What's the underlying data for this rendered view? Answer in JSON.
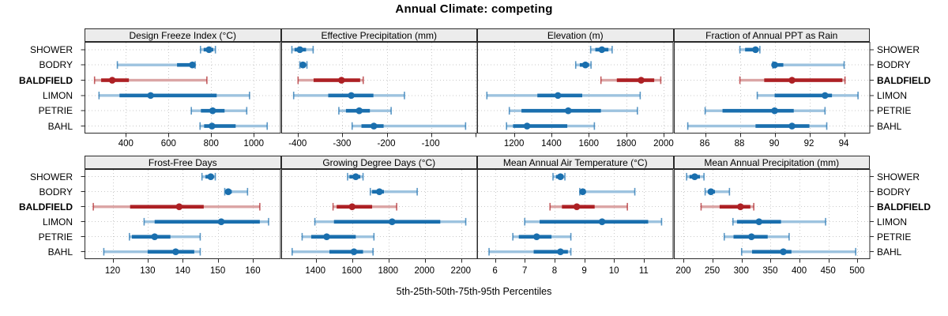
{
  "title": "Annual Climate: competing",
  "xlabel": "5th-25th-50th-75th-95th Percentiles",
  "sites": [
    "SHOWER",
    "BODRY",
    "BALDFIELD",
    "LIMON",
    "PETRIE",
    "BAHL"
  ],
  "highlight_site": "BALDFIELD",
  "percentile_levels": [
    "5th",
    "25th",
    "50th",
    "75th",
    "95th"
  ],
  "colors": {
    "series": "#1A6FAE",
    "series_light": "#9DC3DF",
    "highlight": "#AD2024",
    "highlight_light": "#DBA5A5",
    "strip_bg": "#ECECEC",
    "grid": "#C9C9C9",
    "border": "#2A2A2A"
  },
  "chart_data": {
    "type": "errorbar",
    "layout": "2x4 trellis dotplot, one panel per climate variable",
    "grid": "dotted",
    "legend_position": "none",
    "panels": [
      {
        "title": "Design Freeze Index (°C)",
        "row": 0,
        "col": 0,
        "xlim": [
          206,
          1127
        ],
        "xticks": [
          400,
          600,
          800,
          1000
        ],
        "extra_gridlines": [],
        "series": [
          {
            "site": "SHOWER",
            "percentiles": [
              750,
              765,
              790,
              810,
              820
            ]
          },
          {
            "site": "BODRY",
            "percentiles": [
              360,
              640,
              712,
              718,
              725
            ]
          },
          {
            "site": "BALDFIELD",
            "percentiles": [
              253,
              284,
              336,
              414,
              780
            ]
          },
          {
            "site": "LIMON",
            "percentiles": [
              274,
              370,
              516,
              826,
              980
            ]
          },
          {
            "site": "PETRIE",
            "percentiles": [
              707,
              752,
              807,
              863,
              967
            ]
          },
          {
            "site": "BAHL",
            "percentiles": [
              748,
              767,
              804,
              915,
              1063
            ]
          }
        ]
      },
      {
        "title": "Effective Precipitation (mm)",
        "row": 0,
        "col": 1,
        "xlim": [
          -438,
          5
        ],
        "xticks": [
          -400,
          -300,
          -200,
          -100
        ],
        "extra_gridlines": [
          0
        ],
        "series": [
          {
            "site": "SHOWER",
            "percentiles": [
              -414,
              -408,
              -396,
              -382,
              -366
            ]
          },
          {
            "site": "BODRY",
            "percentiles": [
              -396,
              -393,
              -389,
              -384,
              -380
            ]
          },
          {
            "site": "BALDFIELD",
            "percentiles": [
              -400,
              -365,
              -302,
              -260,
              -253
            ]
          },
          {
            "site": "LIMON",
            "percentiles": [
              -410,
              -332,
              -280,
              -230,
              -160
            ]
          },
          {
            "site": "PETRIE",
            "percentiles": [
              -308,
              -292,
              -262,
              -238,
              -190
            ]
          },
          {
            "site": "BAHL",
            "percentiles": [
              -278,
              -257,
              -229,
              -207,
              -22
            ]
          }
        ]
      },
      {
        "title": "Elevation (m)",
        "row": 0,
        "col": 2,
        "xlim": [
          1003,
          2053
        ],
        "xticks": [
          1200,
          1400,
          1600,
          1800,
          2000
        ],
        "extra_gridlines": [],
        "series": [
          {
            "site": "SHOWER",
            "percentiles": [
              1610,
              1635,
              1670,
              1705,
              1725
            ]
          },
          {
            "site": "BODRY",
            "percentiles": [
              1530,
              1552,
              1582,
              1602,
              1612
            ]
          },
          {
            "site": "BALDFIELD",
            "percentiles": [
              1665,
              1750,
              1880,
              1950,
              1985
            ]
          },
          {
            "site": "LIMON",
            "percentiles": [
              1055,
              1325,
              1435,
              1565,
              1875
            ]
          },
          {
            "site": "PETRIE",
            "percentiles": [
              1175,
              1240,
              1490,
              1665,
              1860
            ]
          },
          {
            "site": "BAHL",
            "percentiles": [
              1160,
              1195,
              1270,
              1485,
              1630
            ]
          }
        ]
      },
      {
        "title": "Fraction of Annual PPT as Rain",
        "row": 0,
        "col": 3,
        "xlim": [
          84.2,
          95.5
        ],
        "xticks": [
          86,
          88,
          90,
          92,
          94
        ],
        "extra_gridlines": [],
        "series": [
          {
            "site": "SHOWER",
            "percentiles": [
              88.0,
              88.3,
              88.9,
              89.05,
              89.15
            ]
          },
          {
            "site": "BODRY",
            "percentiles": [
              89.9,
              89.95,
              90.0,
              90.5,
              94.0
            ]
          },
          {
            "site": "BALDFIELD",
            "percentiles": [
              88.0,
              89.4,
              91.0,
              93.9,
              94.05
            ]
          },
          {
            "site": "LIMON",
            "percentiles": [
              89.0,
              90.0,
              92.9,
              93.3,
              94.8
            ]
          },
          {
            "site": "PETRIE",
            "percentiles": [
              86.0,
              87.0,
              90.0,
              91.1,
              92.9
            ]
          },
          {
            "site": "BAHL",
            "percentiles": [
              85.0,
              88.9,
              91.0,
              92.0,
              93.0
            ]
          }
        ]
      },
      {
        "title": "Frost-Free Days",
        "row": 1,
        "col": 0,
        "xlim": [
          112,
          168
        ],
        "xticks": [
          120,
          130,
          140,
          150,
          160
        ],
        "extra_gridlines": [],
        "series": [
          {
            "site": "SHOWER",
            "percentiles": [
              145.5,
              146.5,
              148,
              148.8,
              149.3
            ]
          },
          {
            "site": "BODRY",
            "percentiles": [
              152,
              152.5,
              153,
              154,
              158.5
            ]
          },
          {
            "site": "BALDFIELD",
            "percentiles": [
              114.5,
              125,
              139,
              146,
              162
            ]
          },
          {
            "site": "LIMON",
            "percentiles": [
              129,
              132,
              151,
              162,
              164.5
            ]
          },
          {
            "site": "PETRIE",
            "percentiles": [
              124.8,
              125.5,
              132,
              136.5,
              145
            ]
          },
          {
            "site": "BAHL",
            "percentiles": [
              117.5,
              130,
              138,
              143.3,
              145
            ]
          }
        ]
      },
      {
        "title": "Growing Degree Days (°C)",
        "row": 1,
        "col": 1,
        "xlim": [
          1210,
          2290
        ],
        "xticks": [
          1400,
          1600,
          1800,
          2000,
          2200
        ],
        "extra_gridlines": [],
        "series": [
          {
            "site": "SHOWER",
            "percentiles": [
              1575,
              1585,
              1620,
              1645,
              1660
            ]
          },
          {
            "site": "BODRY",
            "percentiles": [
              1700,
              1710,
              1750,
              1775,
              1958
            ]
          },
          {
            "site": "BALDFIELD",
            "percentiles": [
              1495,
              1515,
              1600,
              1710,
              1845
            ]
          },
          {
            "site": "LIMON",
            "percentiles": [
              1395,
              1500,
              1820,
              2085,
              2225
            ]
          },
          {
            "site": "PETRIE",
            "percentiles": [
              1325,
              1375,
              1460,
              1620,
              1720
            ]
          },
          {
            "site": "BAHL",
            "percentiles": [
              1270,
              1475,
              1610,
              1660,
              1715
            ]
          }
        ]
      },
      {
        "title": "Mean Annual Air Temperature (°C)",
        "row": 1,
        "col": 2,
        "xlim": [
          5.4,
          12.0
        ],
        "xticks": [
          6,
          7,
          8,
          9,
          10,
          11
        ],
        "extra_gridlines": [],
        "series": [
          {
            "site": "SHOWER",
            "percentiles": [
              7.95,
              8.05,
              8.2,
              8.3,
              8.35
            ]
          },
          {
            "site": "BODRY",
            "percentiles": [
              8.85,
              8.9,
              8.95,
              9.05,
              10.7
            ]
          },
          {
            "site": "BALDFIELD",
            "percentiles": [
              7.85,
              8.25,
              8.75,
              9.35,
              10.45
            ]
          },
          {
            "site": "LIMON",
            "percentiles": [
              7.0,
              7.5,
              9.6,
              11.15,
              11.6
            ]
          },
          {
            "site": "PETRIE",
            "percentiles": [
              6.6,
              6.8,
              7.4,
              7.9,
              8.55
            ]
          },
          {
            "site": "BAHL",
            "percentiles": [
              5.8,
              7.3,
              8.2,
              8.45,
              8.55
            ]
          }
        ]
      },
      {
        "title": "Mean Annual Precipitation (mm)",
        "row": 1,
        "col": 3,
        "xlim": [
          183,
          522
        ],
        "xticks": [
          200,
          250,
          300,
          350,
          400,
          450,
          500
        ],
        "extra_gridlines": [],
        "series": [
          {
            "site": "SHOWER",
            "percentiles": [
              205,
              210,
              219,
              228,
              235
            ]
          },
          {
            "site": "BODRY",
            "percentiles": [
              237,
              242,
              247,
              254,
              279
            ]
          },
          {
            "site": "BALDFIELD",
            "percentiles": [
              230,
              262,
              298,
              315,
              321
            ]
          },
          {
            "site": "LIMON",
            "percentiles": [
              285,
              292,
              330,
              368,
              445
            ]
          },
          {
            "site": "PETRIE",
            "percentiles": [
              270,
              286,
              317,
              345,
              382
            ]
          },
          {
            "site": "BAHL",
            "percentiles": [
              300,
              318,
              372,
              386,
              497
            ]
          }
        ]
      }
    ]
  }
}
